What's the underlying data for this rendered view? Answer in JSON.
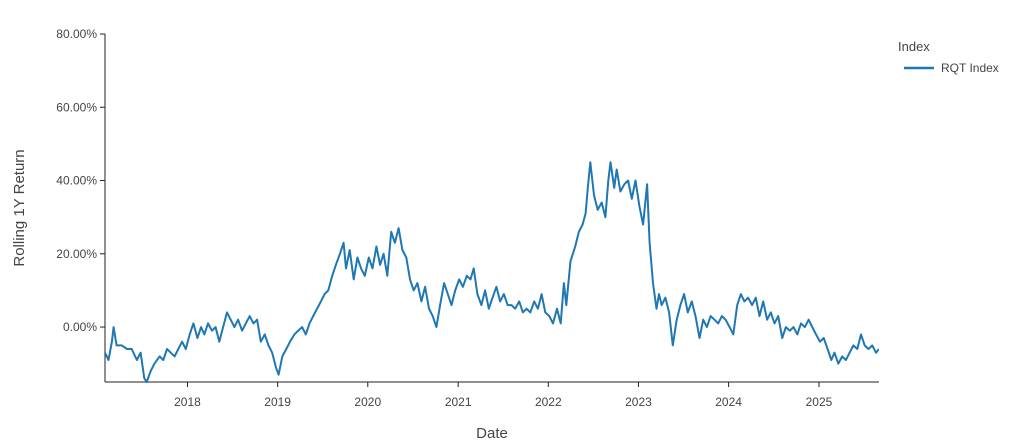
{
  "chart_data": {
    "type": "line",
    "xlabel": "Date",
    "ylabel": "Rolling 1Y Return",
    "xlim": [
      "2017-02-01",
      "2025-09-01"
    ],
    "ylim": [
      -0.15,
      0.8
    ],
    "y_ticks": [
      0.0,
      0.2,
      0.4,
      0.6,
      0.8
    ],
    "y_tick_labels": [
      "0.00%",
      "20.00%",
      "40.00%",
      "60.00%",
      "80.00%"
    ],
    "x_tick_labels": [
      "2018",
      "2019",
      "2020",
      "2021",
      "2022",
      "2023",
      "2024",
      "2025"
    ],
    "grid": false,
    "legend": {
      "title": "Index",
      "position": "top-right"
    },
    "series": [
      {
        "name": "RQT Index",
        "color": "#1f77b4",
        "points": [
          [
            "2017-02-01",
            -0.07
          ],
          [
            "2017-02-15",
            -0.09
          ],
          [
            "2017-03-01",
            -0.04
          ],
          [
            "2017-03-08",
            0.0
          ],
          [
            "2017-03-20",
            -0.05
          ],
          [
            "2017-04-10",
            -0.05
          ],
          [
            "2017-05-01",
            -0.06
          ],
          [
            "2017-05-20",
            -0.06
          ],
          [
            "2017-06-10",
            -0.09
          ],
          [
            "2017-06-25",
            -0.07
          ],
          [
            "2017-07-10",
            -0.14
          ],
          [
            "2017-07-20",
            -0.15
          ],
          [
            "2017-08-05",
            -0.12
          ],
          [
            "2017-08-20",
            -0.1
          ],
          [
            "2017-09-10",
            -0.08
          ],
          [
            "2017-09-25",
            -0.09
          ],
          [
            "2017-10-10",
            -0.06
          ],
          [
            "2017-10-25",
            -0.07
          ],
          [
            "2017-11-10",
            -0.08
          ],
          [
            "2017-11-25",
            -0.06
          ],
          [
            "2017-12-10",
            -0.04
          ],
          [
            "2017-12-25",
            -0.06
          ],
          [
            "2018-01-10",
            -0.02
          ],
          [
            "2018-01-25",
            0.01
          ],
          [
            "2018-02-10",
            -0.03
          ],
          [
            "2018-02-25",
            0.0
          ],
          [
            "2018-03-10",
            -0.02
          ],
          [
            "2018-03-25",
            0.01
          ],
          [
            "2018-04-10",
            -0.01
          ],
          [
            "2018-04-25",
            0.0
          ],
          [
            "2018-05-10",
            -0.04
          ],
          [
            "2018-05-25",
            0.0
          ],
          [
            "2018-06-10",
            0.04
          ],
          [
            "2018-06-25",
            0.02
          ],
          [
            "2018-07-10",
            0.0
          ],
          [
            "2018-07-25",
            0.02
          ],
          [
            "2018-08-10",
            -0.01
          ],
          [
            "2018-08-25",
            0.01
          ],
          [
            "2018-09-10",
            0.03
          ],
          [
            "2018-09-25",
            0.01
          ],
          [
            "2018-10-10",
            0.02
          ],
          [
            "2018-10-25",
            -0.04
          ],
          [
            "2018-11-10",
            -0.02
          ],
          [
            "2018-11-25",
            -0.05
          ],
          [
            "2018-12-10",
            -0.07
          ],
          [
            "2018-12-25",
            -0.11
          ],
          [
            "2019-01-05",
            -0.13
          ],
          [
            "2019-01-20",
            -0.08
          ],
          [
            "2019-02-05",
            -0.06
          ],
          [
            "2019-02-20",
            -0.04
          ],
          [
            "2019-03-10",
            -0.02
          ],
          [
            "2019-03-25",
            -0.01
          ],
          [
            "2019-04-10",
            0.0
          ],
          [
            "2019-04-25",
            -0.02
          ],
          [
            "2019-05-10",
            0.01
          ],
          [
            "2019-05-25",
            0.03
          ],
          [
            "2019-06-10",
            0.05
          ],
          [
            "2019-06-25",
            0.07
          ],
          [
            "2019-07-10",
            0.09
          ],
          [
            "2019-07-25",
            0.1
          ],
          [
            "2019-08-10",
            0.14
          ],
          [
            "2019-08-25",
            0.17
          ],
          [
            "2019-09-10",
            0.2
          ],
          [
            "2019-09-25",
            0.23
          ],
          [
            "2019-10-05",
            0.16
          ],
          [
            "2019-10-20",
            0.21
          ],
          [
            "2019-11-05",
            0.13
          ],
          [
            "2019-11-20",
            0.19
          ],
          [
            "2019-12-05",
            0.16
          ],
          [
            "2019-12-20",
            0.14
          ],
          [
            "2020-01-05",
            0.19
          ],
          [
            "2020-01-20",
            0.16
          ],
          [
            "2020-02-05",
            0.22
          ],
          [
            "2020-02-20",
            0.17
          ],
          [
            "2020-03-05",
            0.2
          ],
          [
            "2020-03-20",
            0.14
          ],
          [
            "2020-04-05",
            0.26
          ],
          [
            "2020-04-20",
            0.23
          ],
          [
            "2020-05-05",
            0.27
          ],
          [
            "2020-05-20",
            0.21
          ],
          [
            "2020-06-05",
            0.19
          ],
          [
            "2020-06-20",
            0.13
          ],
          [
            "2020-07-05",
            0.1
          ],
          [
            "2020-07-20",
            0.12
          ],
          [
            "2020-08-05",
            0.07
          ],
          [
            "2020-08-20",
            0.11
          ],
          [
            "2020-09-05",
            0.05
          ],
          [
            "2020-09-20",
            0.03
          ],
          [
            "2020-10-05",
            0.0
          ],
          [
            "2020-10-20",
            0.06
          ],
          [
            "2020-11-05",
            0.12
          ],
          [
            "2020-11-20",
            0.09
          ],
          [
            "2020-12-05",
            0.06
          ],
          [
            "2020-12-20",
            0.1
          ],
          [
            "2021-01-05",
            0.13
          ],
          [
            "2021-01-20",
            0.11
          ],
          [
            "2021-02-05",
            0.14
          ],
          [
            "2021-02-20",
            0.13
          ],
          [
            "2021-03-05",
            0.16
          ],
          [
            "2021-03-20",
            0.09
          ],
          [
            "2021-04-05",
            0.06
          ],
          [
            "2021-04-20",
            0.1
          ],
          [
            "2021-05-05",
            0.05
          ],
          [
            "2021-05-20",
            0.08
          ],
          [
            "2021-06-05",
            0.11
          ],
          [
            "2021-06-20",
            0.07
          ],
          [
            "2021-07-05",
            0.09
          ],
          [
            "2021-07-20",
            0.06
          ],
          [
            "2021-08-05",
            0.06
          ],
          [
            "2021-08-20",
            0.05
          ],
          [
            "2021-09-05",
            0.07
          ],
          [
            "2021-09-20",
            0.04
          ],
          [
            "2021-10-05",
            0.05
          ],
          [
            "2021-10-20",
            0.04
          ],
          [
            "2021-11-05",
            0.07
          ],
          [
            "2021-11-20",
            0.05
          ],
          [
            "2021-12-05",
            0.09
          ],
          [
            "2021-12-20",
            0.04
          ],
          [
            "2022-01-05",
            0.03
          ],
          [
            "2022-01-20",
            0.01
          ],
          [
            "2022-02-05",
            0.05
          ],
          [
            "2022-02-20",
            0.01
          ],
          [
            "2022-03-05",
            0.12
          ],
          [
            "2022-03-15",
            0.06
          ],
          [
            "2022-04-01",
            0.18
          ],
          [
            "2022-04-20",
            0.22
          ],
          [
            "2022-05-05",
            0.26
          ],
          [
            "2022-05-20",
            0.28
          ],
          [
            "2022-06-01",
            0.31
          ],
          [
            "2022-06-10",
            0.38
          ],
          [
            "2022-06-20",
            0.45
          ],
          [
            "2022-07-05",
            0.36
          ],
          [
            "2022-07-20",
            0.32
          ],
          [
            "2022-08-05",
            0.34
          ],
          [
            "2022-08-20",
            0.3
          ],
          [
            "2022-09-01",
            0.4
          ],
          [
            "2022-09-10",
            0.45
          ],
          [
            "2022-09-25",
            0.38
          ],
          [
            "2022-10-05",
            0.43
          ],
          [
            "2022-10-20",
            0.37
          ],
          [
            "2022-11-05",
            0.39
          ],
          [
            "2022-11-20",
            0.4
          ],
          [
            "2022-12-05",
            0.35
          ],
          [
            "2022-12-20",
            0.4
          ],
          [
            "2023-01-05",
            0.33
          ],
          [
            "2023-01-20",
            0.28
          ],
          [
            "2023-02-05",
            0.39
          ],
          [
            "2023-02-15",
            0.23
          ],
          [
            "2023-03-01",
            0.12
          ],
          [
            "2023-03-15",
            0.05
          ],
          [
            "2023-03-25",
            0.09
          ],
          [
            "2023-04-05",
            0.06
          ],
          [
            "2023-04-20",
            0.08
          ],
          [
            "2023-05-05",
            0.04
          ],
          [
            "2023-05-20",
            -0.05
          ],
          [
            "2023-06-05",
            0.02
          ],
          [
            "2023-06-20",
            0.06
          ],
          [
            "2023-07-05",
            0.09
          ],
          [
            "2023-07-20",
            0.04
          ],
          [
            "2023-08-05",
            0.07
          ],
          [
            "2023-08-20",
            0.03
          ],
          [
            "2023-09-05",
            -0.03
          ],
          [
            "2023-09-20",
            0.02
          ],
          [
            "2023-10-05",
            0.0
          ],
          [
            "2023-10-20",
            0.03
          ],
          [
            "2023-11-05",
            0.02
          ],
          [
            "2023-11-20",
            0.01
          ],
          [
            "2023-12-05",
            0.03
          ],
          [
            "2023-12-20",
            0.02
          ],
          [
            "2024-01-05",
            0.0
          ],
          [
            "2024-01-20",
            -0.02
          ],
          [
            "2024-02-05",
            0.06
          ],
          [
            "2024-02-20",
            0.09
          ],
          [
            "2024-03-05",
            0.07
          ],
          [
            "2024-03-20",
            0.08
          ],
          [
            "2024-04-05",
            0.06
          ],
          [
            "2024-04-20",
            0.08
          ],
          [
            "2024-05-05",
            0.03
          ],
          [
            "2024-05-20",
            0.07
          ],
          [
            "2024-06-05",
            0.02
          ],
          [
            "2024-06-20",
            0.04
          ],
          [
            "2024-07-05",
            0.01
          ],
          [
            "2024-07-20",
            0.03
          ],
          [
            "2024-08-05",
            -0.03
          ],
          [
            "2024-08-20",
            0.0
          ],
          [
            "2024-09-05",
            -0.01
          ],
          [
            "2024-09-20",
            0.0
          ],
          [
            "2024-10-05",
            -0.02
          ],
          [
            "2024-10-20",
            0.01
          ],
          [
            "2024-11-05",
            0.0
          ],
          [
            "2024-11-20",
            0.02
          ],
          [
            "2024-12-05",
            0.0
          ],
          [
            "2024-12-20",
            -0.02
          ],
          [
            "2025-01-05",
            -0.04
          ],
          [
            "2025-01-20",
            -0.03
          ],
          [
            "2025-02-05",
            -0.06
          ],
          [
            "2025-02-20",
            -0.09
          ],
          [
            "2025-03-05",
            -0.07
          ],
          [
            "2025-03-20",
            -0.1
          ],
          [
            "2025-04-05",
            -0.08
          ],
          [
            "2025-04-20",
            -0.09
          ],
          [
            "2025-05-05",
            -0.07
          ],
          [
            "2025-05-20",
            -0.05
          ],
          [
            "2025-06-05",
            -0.06
          ],
          [
            "2025-06-20",
            -0.02
          ],
          [
            "2025-07-05",
            -0.05
          ],
          [
            "2025-07-20",
            -0.06
          ],
          [
            "2025-08-05",
            -0.05
          ],
          [
            "2025-08-20",
            -0.07
          ],
          [
            "2025-09-01",
            -0.06
          ]
        ]
      }
    ]
  }
}
